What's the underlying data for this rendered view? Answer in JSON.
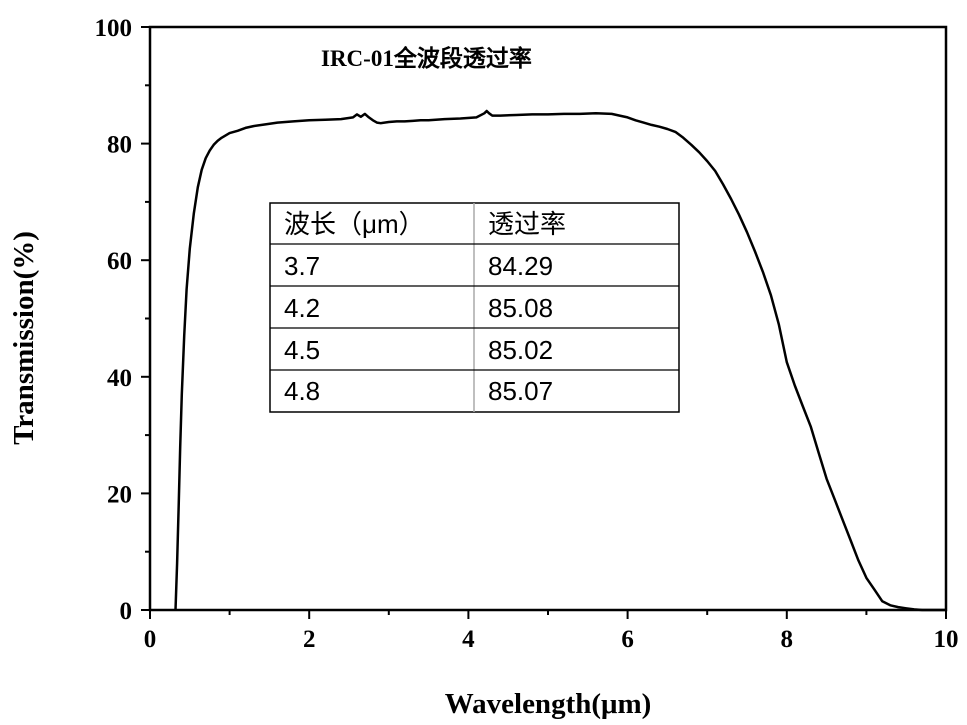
{
  "chart_data": {
    "type": "line",
    "title": "IRC-01全波段透过率",
    "xlabel": "Wavelength(μm)",
    "ylabel": "Transmission(%)",
    "xlim": [
      0,
      10
    ],
    "ylim": [
      0,
      100
    ],
    "x_ticks": [
      "0",
      "2",
      "4",
      "6",
      "8",
      "10"
    ],
    "y_ticks": [
      "0",
      "20",
      "40",
      "60",
      "80",
      "100"
    ],
    "grid": false,
    "legend": "none",
    "line_color": "#000000",
    "series": [
      {
        "x": [
          0.32,
          0.34,
          0.36,
          0.38,
          0.4,
          0.43,
          0.46,
          0.5,
          0.55,
          0.6,
          0.65,
          0.7,
          0.75,
          0.8,
          0.85,
          0.9,
          1.0,
          1.1,
          1.2,
          1.3,
          1.45,
          1.6,
          1.8,
          2.0,
          2.2,
          2.4,
          2.55,
          2.6,
          2.65,
          2.7,
          2.75,
          2.8,
          2.85,
          2.9,
          3.0,
          3.1,
          3.2,
          3.3,
          3.4,
          3.5,
          3.7,
          3.9,
          4.1,
          4.2,
          4.23,
          4.26,
          4.3,
          4.4,
          4.6,
          4.8,
          5.0,
          5.2,
          5.4,
          5.6,
          5.8,
          5.9,
          6.0,
          6.1,
          6.2,
          6.3,
          6.4,
          6.5,
          6.6,
          6.7,
          6.8,
          6.9,
          7.0,
          7.1,
          7.2,
          7.3,
          7.4,
          7.5,
          7.6,
          7.7,
          7.8,
          7.9,
          8.0,
          8.1,
          8.2,
          8.3,
          8.4,
          8.5,
          8.6,
          8.7,
          8.8,
          8.9,
          9.0,
          9.1,
          9.2,
          9.3,
          9.4,
          9.5,
          9.6,
          9.7,
          9.8,
          9.9,
          10.0
        ],
        "y": [
          0,
          8,
          18,
          28,
          37,
          47,
          55,
          62,
          68,
          72.5,
          75.5,
          77.5,
          78.8,
          79.8,
          80.5,
          81.0,
          81.8,
          82.2,
          82.7,
          83.0,
          83.3,
          83.6,
          83.8,
          84.0,
          84.1,
          84.2,
          84.5,
          85.0,
          84.6,
          85.1,
          84.5,
          84.0,
          83.6,
          83.5,
          83.7,
          83.8,
          83.8,
          83.9,
          84.0,
          84.0,
          84.2,
          84.3,
          84.5,
          85.2,
          85.6,
          85.2,
          84.8,
          84.8,
          84.9,
          85.0,
          85.0,
          85.1,
          85.1,
          85.2,
          85.1,
          84.8,
          84.5,
          84.0,
          83.6,
          83.2,
          82.9,
          82.5,
          82.0,
          81.0,
          79.8,
          78.5,
          77.0,
          75.3,
          73.0,
          70.5,
          67.8,
          64.8,
          61.5,
          58.0,
          54.0,
          49.0,
          42.5,
          38.5,
          35.0,
          31.5,
          27.0,
          22.5,
          19.0,
          15.5,
          12.0,
          8.5,
          5.5,
          3.5,
          1.5,
          0.8,
          0.5,
          0.3,
          0.1,
          0,
          0,
          0,
          0
        ]
      }
    ]
  },
  "inset_table": {
    "headers": [
      "波长（μm）",
      "透过率"
    ],
    "rows": [
      [
        "3.7",
        "84.29"
      ],
      [
        "4.2",
        "85.08"
      ],
      [
        "4.5",
        "85.02"
      ],
      [
        "4.8",
        "85.07"
      ]
    ]
  }
}
